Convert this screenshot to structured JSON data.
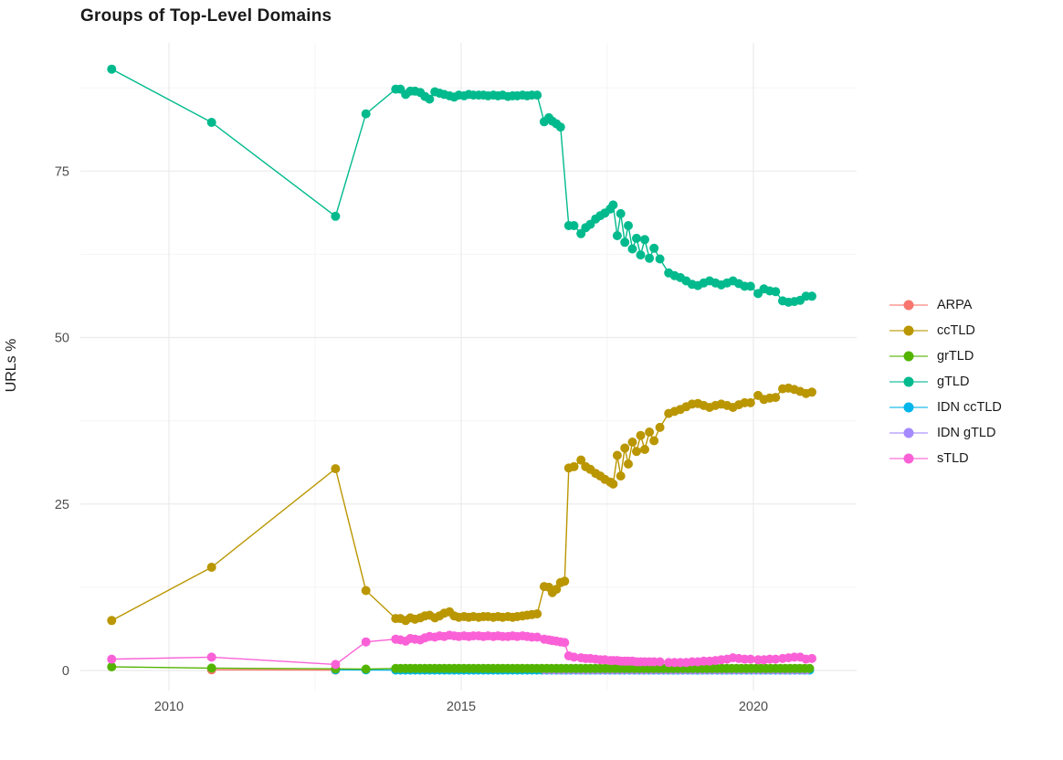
{
  "title": "Groups of Top-Level Domains",
  "y_axis_label": "URLs %",
  "chart_data": {
    "type": "line",
    "title": "Groups of Top-Level Domains",
    "xlabel": "",
    "ylabel": "URLs %",
    "x_unit": "year (decimal)",
    "xlim": [
      2008.5,
      2021.8
    ],
    "ylim": [
      0,
      93
    ],
    "x_ticks": [
      2010,
      2015,
      2020
    ],
    "x_minor_ticks": [
      2012.5,
      2017.5
    ],
    "y_ticks": [
      0,
      25,
      50,
      75
    ],
    "y_minor_ticks": [
      12.5,
      37.5,
      62.5,
      87.5
    ],
    "grid": true,
    "legend_position": "right",
    "colors": {
      "major_grid": "#EBEBEB",
      "minor_grid": "#F5F5F5",
      "tick_text": "#4d4d4d",
      "title_text": "#1a1a1a"
    },
    "series": [
      {
        "name": "ARPA",
        "color": "#F8766D",
        "points": [
          [
            2010.73,
            0.1
          ],
          [
            2012.85,
            0.05
          ]
        ]
      },
      {
        "name": "ccTLD",
        "color": "#BA9600",
        "points": [
          [
            2009.02,
            7.5
          ],
          [
            2010.73,
            15.5
          ],
          [
            2012.85,
            30.3
          ],
          [
            2013.37,
            12.0
          ],
          [
            2013.88,
            7.8
          ],
          [
            2013.96,
            7.8
          ],
          [
            2014.05,
            7.5
          ],
          [
            2014.13,
            7.9
          ],
          [
            2014.21,
            7.7
          ],
          [
            2014.3,
            7.9
          ],
          [
            2014.38,
            8.2
          ],
          [
            2014.46,
            8.3
          ],
          [
            2014.55,
            7.9
          ],
          [
            2014.63,
            8.2
          ],
          [
            2014.71,
            8.6
          ],
          [
            2014.8,
            8.8
          ],
          [
            2014.88,
            8.2
          ],
          [
            2014.96,
            8.0
          ],
          [
            2015.05,
            8.1
          ],
          [
            2015.13,
            8.0
          ],
          [
            2015.21,
            8.1
          ],
          [
            2015.3,
            8.0
          ],
          [
            2015.38,
            8.1
          ],
          [
            2015.46,
            8.1
          ],
          [
            2015.55,
            8.0
          ],
          [
            2015.63,
            8.1
          ],
          [
            2015.71,
            8.0
          ],
          [
            2015.8,
            8.1
          ],
          [
            2015.88,
            8.0
          ],
          [
            2015.96,
            8.1
          ],
          [
            2016.05,
            8.2
          ],
          [
            2016.13,
            8.3
          ],
          [
            2016.21,
            8.4
          ],
          [
            2016.3,
            8.5
          ],
          [
            2016.42,
            12.6
          ],
          [
            2016.5,
            12.5
          ],
          [
            2016.56,
            11.7
          ],
          [
            2016.63,
            12.2
          ],
          [
            2016.7,
            13.2
          ],
          [
            2016.77,
            13.4
          ],
          [
            2016.84,
            30.4
          ],
          [
            2016.93,
            30.6
          ],
          [
            2017.05,
            31.6
          ],
          [
            2017.13,
            30.6
          ],
          [
            2017.21,
            30.2
          ],
          [
            2017.3,
            29.6
          ],
          [
            2017.38,
            29.2
          ],
          [
            2017.46,
            28.7
          ],
          [
            2017.55,
            28.3
          ],
          [
            2017.6,
            28.0
          ],
          [
            2017.67,
            32.3
          ],
          [
            2017.73,
            29.2
          ],
          [
            2017.8,
            33.4
          ],
          [
            2017.86,
            31.0
          ],
          [
            2017.93,
            34.3
          ],
          [
            2018.0,
            32.9
          ],
          [
            2018.07,
            35.3
          ],
          [
            2018.14,
            33.2
          ],
          [
            2018.22,
            35.8
          ],
          [
            2018.3,
            34.5
          ],
          [
            2018.4,
            36.5
          ],
          [
            2018.55,
            38.6
          ],
          [
            2018.65,
            38.9
          ],
          [
            2018.75,
            39.2
          ],
          [
            2018.85,
            39.6
          ],
          [
            2018.95,
            40.0
          ],
          [
            2019.05,
            40.1
          ],
          [
            2019.15,
            39.8
          ],
          [
            2019.25,
            39.5
          ],
          [
            2019.35,
            39.8
          ],
          [
            2019.45,
            40.0
          ],
          [
            2019.55,
            39.8
          ],
          [
            2019.65,
            39.5
          ],
          [
            2019.75,
            39.9
          ],
          [
            2019.85,
            40.2
          ],
          [
            2019.95,
            40.2
          ],
          [
            2020.08,
            41.3
          ],
          [
            2020.18,
            40.7
          ],
          [
            2020.28,
            40.9
          ],
          [
            2020.38,
            41.0
          ],
          [
            2020.5,
            42.3
          ],
          [
            2020.6,
            42.4
          ],
          [
            2020.7,
            42.2
          ],
          [
            2020.8,
            41.9
          ],
          [
            2020.9,
            41.6
          ],
          [
            2021.0,
            41.8
          ]
        ]
      },
      {
        "name": "grTLD",
        "color": "#53B400",
        "points": [
          [
            2009.02,
            0.55
          ],
          [
            2010.73,
            0.35
          ],
          [
            2012.85,
            0.25
          ],
          [
            2013.37,
            0.2
          ]
        ],
        "runs": [
          {
            "from": 2013.88,
            "to": 2021.0,
            "step": 0.0833,
            "y": 0.3
          }
        ]
      },
      {
        "name": "gTLD",
        "color": "#00BA8D",
        "points": [
          [
            2009.02,
            90.3
          ],
          [
            2010.73,
            82.3
          ],
          [
            2012.85,
            68.2
          ],
          [
            2013.37,
            83.6
          ],
          [
            2013.88,
            87.3
          ],
          [
            2013.96,
            87.3
          ],
          [
            2014.05,
            86.5
          ],
          [
            2014.13,
            87.0
          ],
          [
            2014.21,
            87.0
          ],
          [
            2014.3,
            86.8
          ],
          [
            2014.38,
            86.2
          ],
          [
            2014.46,
            85.8
          ],
          [
            2014.55,
            86.9
          ],
          [
            2014.63,
            86.7
          ],
          [
            2014.71,
            86.5
          ],
          [
            2014.8,
            86.3
          ],
          [
            2014.88,
            86.1
          ],
          [
            2014.96,
            86.4
          ],
          [
            2015.05,
            86.3
          ],
          [
            2015.13,
            86.5
          ],
          [
            2015.21,
            86.4
          ],
          [
            2015.3,
            86.4
          ],
          [
            2015.38,
            86.4
          ],
          [
            2015.46,
            86.3
          ],
          [
            2015.55,
            86.4
          ],
          [
            2015.63,
            86.3
          ],
          [
            2015.71,
            86.4
          ],
          [
            2015.8,
            86.2
          ],
          [
            2015.88,
            86.3
          ],
          [
            2015.96,
            86.3
          ],
          [
            2016.05,
            86.4
          ],
          [
            2016.13,
            86.3
          ],
          [
            2016.21,
            86.4
          ],
          [
            2016.3,
            86.4
          ],
          [
            2016.42,
            82.4
          ],
          [
            2016.5,
            83.0
          ],
          [
            2016.56,
            82.5
          ],
          [
            2016.63,
            82.1
          ],
          [
            2016.7,
            81.6
          ],
          [
            2016.84,
            66.8
          ],
          [
            2016.93,
            66.8
          ],
          [
            2017.05,
            65.6
          ],
          [
            2017.13,
            66.5
          ],
          [
            2017.21,
            67.0
          ],
          [
            2017.3,
            67.8
          ],
          [
            2017.38,
            68.3
          ],
          [
            2017.46,
            68.7
          ],
          [
            2017.55,
            69.3
          ],
          [
            2017.6,
            69.9
          ],
          [
            2017.67,
            65.3
          ],
          [
            2017.73,
            68.6
          ],
          [
            2017.8,
            64.3
          ],
          [
            2017.86,
            66.8
          ],
          [
            2017.93,
            63.3
          ],
          [
            2018.0,
            64.9
          ],
          [
            2018.07,
            62.4
          ],
          [
            2018.14,
            64.7
          ],
          [
            2018.22,
            61.9
          ],
          [
            2018.3,
            63.4
          ],
          [
            2018.4,
            61.8
          ],
          [
            2018.55,
            59.7
          ],
          [
            2018.65,
            59.3
          ],
          [
            2018.75,
            59.0
          ],
          [
            2018.85,
            58.5
          ],
          [
            2018.95,
            58.0
          ],
          [
            2019.05,
            57.8
          ],
          [
            2019.15,
            58.2
          ],
          [
            2019.25,
            58.5
          ],
          [
            2019.35,
            58.2
          ],
          [
            2019.45,
            57.9
          ],
          [
            2019.55,
            58.2
          ],
          [
            2019.65,
            58.5
          ],
          [
            2019.75,
            58.1
          ],
          [
            2019.85,
            57.7
          ],
          [
            2019.95,
            57.7
          ],
          [
            2020.08,
            56.6
          ],
          [
            2020.18,
            57.3
          ],
          [
            2020.28,
            57.0
          ],
          [
            2020.38,
            56.9
          ],
          [
            2020.5,
            55.5
          ],
          [
            2020.6,
            55.3
          ],
          [
            2020.7,
            55.4
          ],
          [
            2020.8,
            55.6
          ],
          [
            2020.9,
            56.2
          ],
          [
            2021.0,
            56.2
          ]
        ]
      },
      {
        "name": "IDN ccTLD",
        "color": "#00B6EB",
        "points": [
          [
            2012.85,
            0.1
          ],
          [
            2013.37,
            0.08
          ]
        ],
        "runs": [
          {
            "from": 2013.88,
            "to": 2021.0,
            "step": 0.0833,
            "y": 0.05
          }
        ]
      },
      {
        "name": "IDN gTLD",
        "color": "#A58AFF",
        "points": [],
        "runs": [
          {
            "from": 2016.42,
            "to": 2021.0,
            "step": 0.0833,
            "y": 0.1
          }
        ]
      },
      {
        "name": "sTLD",
        "color": "#FB61D7",
        "points": [
          [
            2009.02,
            1.7
          ],
          [
            2010.73,
            2.0
          ],
          [
            2012.85,
            0.9
          ],
          [
            2013.37,
            4.3
          ],
          [
            2013.88,
            4.7
          ],
          [
            2013.96,
            4.6
          ],
          [
            2014.05,
            4.4
          ],
          [
            2014.13,
            4.8
          ],
          [
            2014.21,
            4.7
          ],
          [
            2014.3,
            4.6
          ],
          [
            2014.38,
            4.9
          ],
          [
            2014.46,
            5.1
          ],
          [
            2014.55,
            5.0
          ],
          [
            2014.63,
            5.2
          ],
          [
            2014.71,
            5.1
          ],
          [
            2014.8,
            5.3
          ],
          [
            2014.88,
            5.2
          ],
          [
            2014.96,
            5.1
          ],
          [
            2015.05,
            5.2
          ],
          [
            2015.13,
            5.1
          ],
          [
            2015.21,
            5.2
          ],
          [
            2015.3,
            5.2
          ],
          [
            2015.38,
            5.1
          ],
          [
            2015.46,
            5.2
          ],
          [
            2015.55,
            5.1
          ],
          [
            2015.63,
            5.2
          ],
          [
            2015.71,
            5.1
          ],
          [
            2015.8,
            5.1
          ],
          [
            2015.88,
            5.2
          ],
          [
            2015.96,
            5.1
          ],
          [
            2016.05,
            5.2
          ],
          [
            2016.13,
            5.1
          ],
          [
            2016.21,
            5.0
          ],
          [
            2016.3,
            5.0
          ],
          [
            2016.42,
            4.7
          ],
          [
            2016.5,
            4.6
          ],
          [
            2016.56,
            4.5
          ],
          [
            2016.63,
            4.4
          ],
          [
            2016.7,
            4.3
          ],
          [
            2016.77,
            4.2
          ],
          [
            2016.84,
            2.2
          ],
          [
            2016.93,
            2.0
          ],
          [
            2017.05,
            1.9
          ],
          [
            2017.13,
            1.8
          ],
          [
            2017.21,
            1.8
          ],
          [
            2017.3,
            1.7
          ],
          [
            2017.38,
            1.6
          ],
          [
            2017.46,
            1.6
          ],
          [
            2017.55,
            1.5
          ],
          [
            2017.6,
            1.5
          ],
          [
            2017.67,
            1.5
          ],
          [
            2017.73,
            1.4
          ],
          [
            2017.8,
            1.4
          ],
          [
            2017.86,
            1.4
          ],
          [
            2017.93,
            1.4
          ],
          [
            2018.0,
            1.3
          ],
          [
            2018.07,
            1.3
          ],
          [
            2018.14,
            1.3
          ],
          [
            2018.22,
            1.3
          ],
          [
            2018.3,
            1.3
          ],
          [
            2018.4,
            1.3
          ],
          [
            2018.55,
            1.2
          ],
          [
            2018.65,
            1.2
          ],
          [
            2018.75,
            1.2
          ],
          [
            2018.85,
            1.2
          ],
          [
            2018.95,
            1.3
          ],
          [
            2019.05,
            1.3
          ],
          [
            2019.15,
            1.4
          ],
          [
            2019.25,
            1.4
          ],
          [
            2019.35,
            1.5
          ],
          [
            2019.45,
            1.6
          ],
          [
            2019.55,
            1.7
          ],
          [
            2019.65,
            1.9
          ],
          [
            2019.75,
            1.8
          ],
          [
            2019.85,
            1.7
          ],
          [
            2019.95,
            1.7
          ],
          [
            2020.08,
            1.6
          ],
          [
            2020.18,
            1.6
          ],
          [
            2020.28,
            1.7
          ],
          [
            2020.38,
            1.7
          ],
          [
            2020.5,
            1.8
          ],
          [
            2020.6,
            1.9
          ],
          [
            2020.7,
            2.0
          ],
          [
            2020.8,
            2.0
          ],
          [
            2020.9,
            1.7
          ],
          [
            2021.0,
            1.8
          ]
        ]
      }
    ]
  }
}
